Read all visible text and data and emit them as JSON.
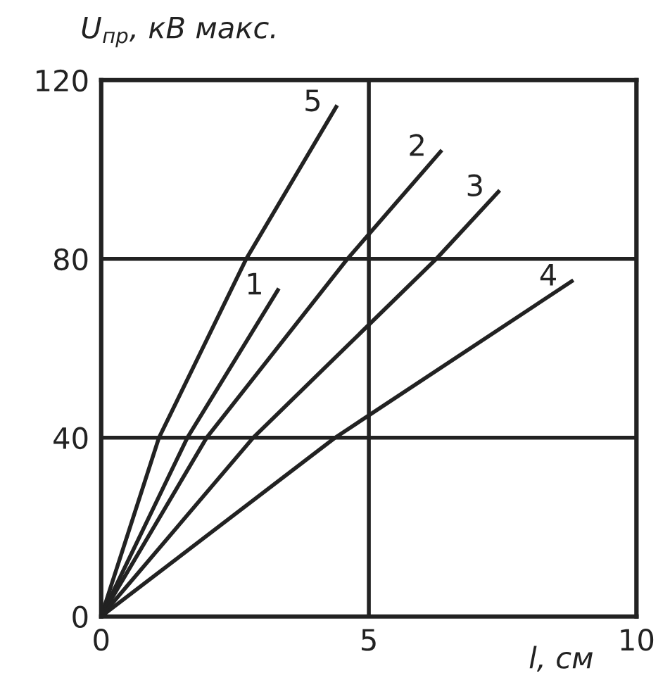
{
  "chart_data": {
    "type": "line",
    "xlabel": "l, см",
    "ylabel": "U$_{пр}$, кВ макс.",
    "xlim": [
      0,
      10
    ],
    "ylim": [
      0,
      120
    ],
    "xticks": [
      0,
      5,
      10
    ],
    "yticks": [
      0,
      40,
      80,
      120
    ],
    "grid": true,
    "marker": "none",
    "line_style": "solid",
    "series": [
      {
        "name": "5",
        "color": "#222222",
        "x": [
          0,
          1.08,
          2.71,
          4.39
        ],
        "values": [
          0,
          40,
          80,
          114
        ]
      },
      {
        "name": "1",
        "color": "#222222",
        "x": [
          0,
          1.61,
          3.3
        ],
        "values": [
          0,
          40,
          73
        ]
      },
      {
        "name": "2",
        "color": "#222222",
        "x": [
          0,
          1.97,
          4.6,
          6.34
        ],
        "values": [
          0,
          40,
          80,
          104
        ]
      },
      {
        "name": "3",
        "color": "#222222",
        "x": [
          0,
          2.84,
          6.26,
          7.42
        ],
        "values": [
          0,
          40,
          80,
          95
        ]
      },
      {
        "name": "4",
        "color": "#222222",
        "x": [
          0,
          4.37,
          8.79
        ],
        "values": [
          0,
          40,
          75
        ]
      }
    ]
  }
}
